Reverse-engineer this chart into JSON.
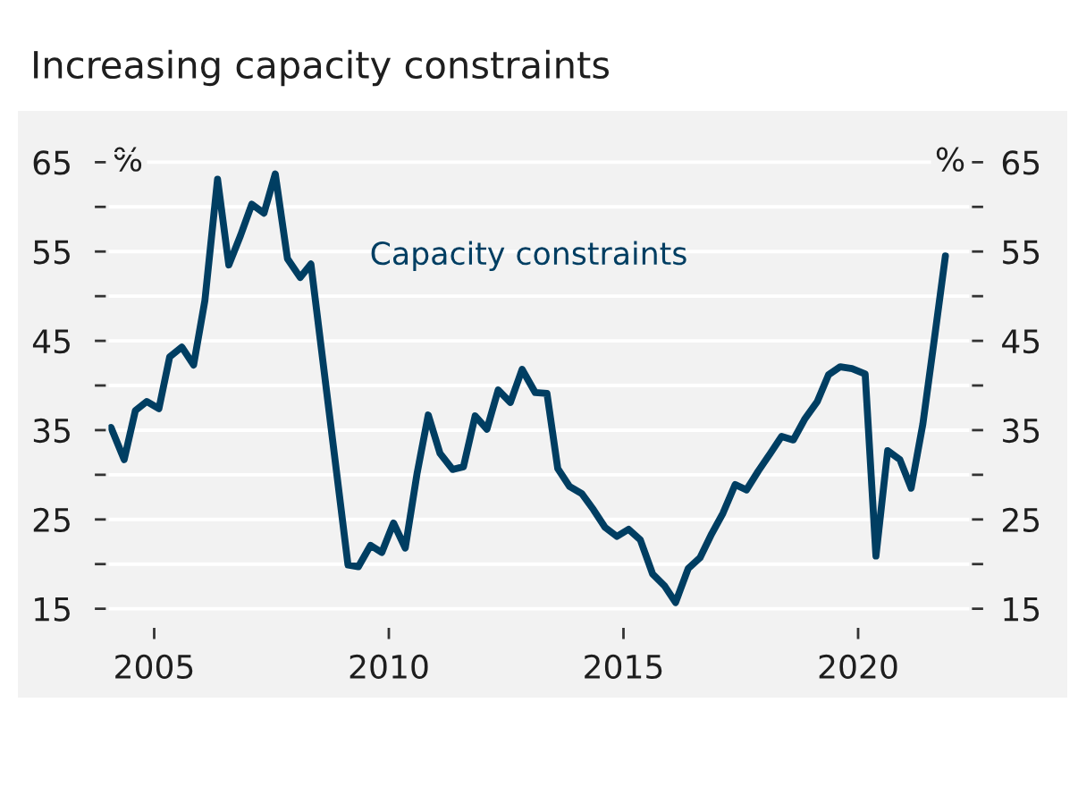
{
  "chart_data": {
    "type": "line",
    "title": "Increasing capacity constraints",
    "ylabel": "%",
    "y2label": "%",
    "x": [
      2004.08,
      2004.36,
      2004.6,
      2004.84,
      2005.1,
      2005.33,
      2005.59,
      2005.84,
      2006.08,
      2006.35,
      2006.59,
      2006.84,
      2007.08,
      2007.34,
      2007.58,
      2007.84,
      2008.11,
      2008.34,
      2009.13,
      2009.35,
      2009.61,
      2009.85,
      2010.1,
      2010.35,
      2010.6,
      2010.84,
      2011.09,
      2011.36,
      2011.59,
      2011.84,
      2012.09,
      2012.33,
      2012.59,
      2012.84,
      2013.12,
      2013.37,
      2013.6,
      2013.85,
      2014.11,
      2014.36,
      2014.61,
      2014.86,
      2015.11,
      2015.36,
      2015.62,
      2015.87,
      2016.11,
      2016.38,
      2016.63,
      2016.88,
      2017.12,
      2017.38,
      2017.62,
      2017.87,
      2018.13,
      2018.37,
      2018.62,
      2018.87,
      2019.13,
      2019.37,
      2019.62,
      2019.87,
      2020.15,
      2020.38,
      2020.63,
      2020.89,
      2021.13,
      2021.38,
      2021.63,
      2021.86
    ],
    "series": [
      {
        "name": "Capacity constraints",
        "color": "#003e62",
        "values": [
          35.3,
          31.7,
          37.2,
          38.2,
          37.4,
          43.2,
          44.3,
          42.3,
          49.5,
          63.1,
          53.5,
          56.8,
          60.3,
          59.3,
          63.7,
          54.2,
          52.1,
          53.6,
          19.9,
          19.7,
          22.1,
          21.3,
          24.6,
          21.8,
          30.1,
          36.7,
          32.4,
          30.6,
          30.9,
          36.6,
          35.1,
          39.5,
          38.1,
          41.8,
          39.2,
          39.1,
          30.7,
          28.7,
          27.9,
          26.1,
          24.1,
          23.1,
          23.9,
          22.7,
          18.9,
          17.6,
          15.7,
          19.5,
          20.7,
          23.4,
          25.7,
          28.9,
          28.3,
          30.4,
          32.4,
          34.3,
          33.9,
          36.3,
          38.2,
          41.2,
          42.1,
          41.9,
          41.3,
          20.9,
          32.7,
          31.7,
          28.5,
          35.7,
          45.4,
          54.5
        ]
      }
    ],
    "xlim": [
      2004,
      2022.4
    ],
    "xticks": [
      2005,
      2010,
      2015,
      2020
    ],
    "ylim": [
      13,
      66
    ],
    "yticks": [
      15,
      {
        "value": 20,
        "label": null
      },
      25,
      {
        "value": 30,
        "label": null
      },
      35,
      {
        "value": 40,
        "label": null
      },
      45,
      {
        "value": 50,
        "label": null
      },
      55,
      {
        "value": 60,
        "label": null
      },
      65
    ],
    "y2lim": [
      13,
      66
    ],
    "y2ticks": [
      15,
      {
        "value": 20,
        "label": null
      },
      25,
      {
        "value": 30,
        "label": null
      },
      35,
      {
        "value": 40,
        "label": null
      },
      45,
      {
        "value": 50,
        "label": null
      },
      55,
      {
        "value": 60,
        "label": null
      },
      65
    ],
    "grid": "y",
    "legend": false
  }
}
